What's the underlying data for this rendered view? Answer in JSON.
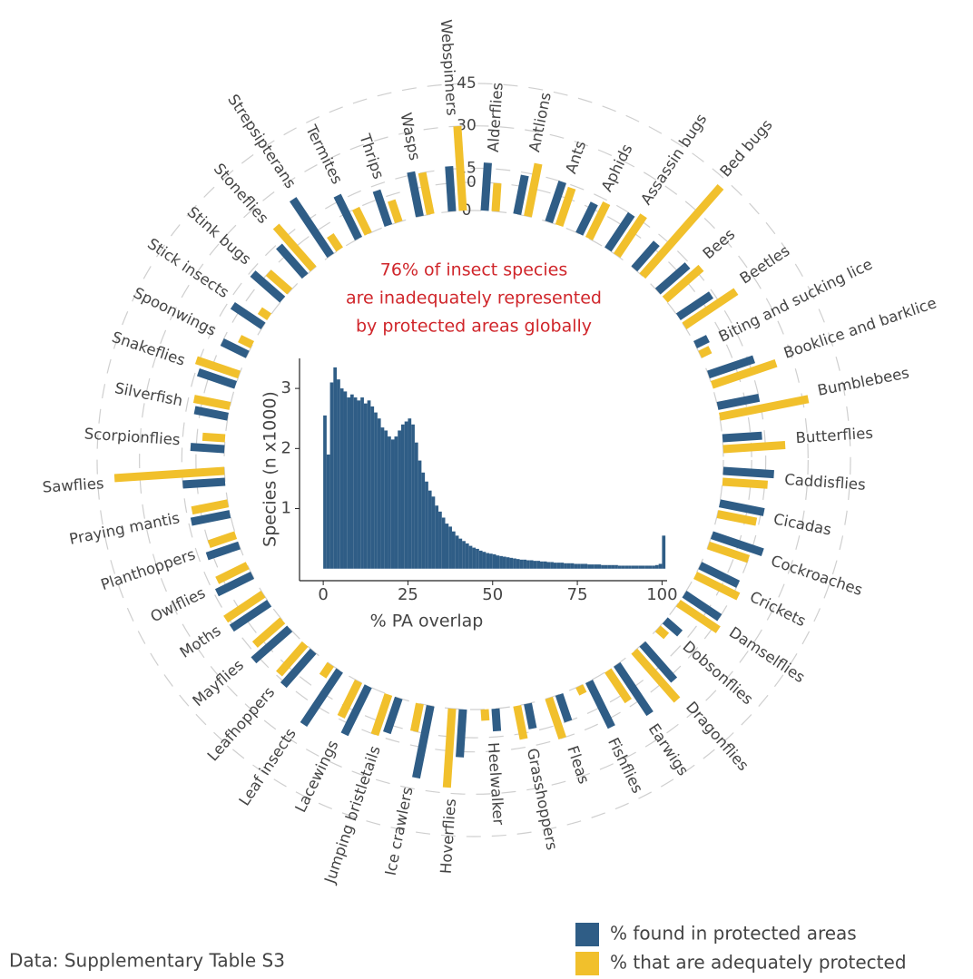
{
  "chart_data": [
    {
      "type": "radialbar",
      "annotation": [
        "76% of insect species",
        "are inadequately represented",
        "by protected areas globally"
      ],
      "source": "Data: Supplementary Table S3",
      "categories": [
        "Alderflies",
        "Antlions",
        "Ants",
        "Aphids",
        "Assassin bugs",
        "Bed bugs",
        "Bees",
        "Beetles",
        "Biting and sucking lice",
        "Booklice and barklice",
        "Bumblebees",
        "Butterflies",
        "Caddisflies",
        "Cicadas",
        "Cockroaches",
        "Crickets",
        "Damselflies",
        "Dobsonflies",
        "Dragonflies",
        "Earwigs",
        "Fishflies",
        "Fleas",
        "Grasshoppers",
        "Heelwalker",
        "Hoverflies",
        "Ice crawlers",
        "Jumping bristletails",
        "Lacewings",
        "Leaf insects",
        "Leafhoppers",
        "Mayflies",
        "Moths",
        "Owlflies",
        "Planthoppers",
        "Praying mantis",
        "Sawflies",
        "Scorpionflies",
        "Silverfish",
        "Snakeflies",
        "Spoonwings",
        "Stick insects",
        "Stink bugs",
        "Stoneflies",
        "Strepsipterans",
        "Termites",
        "Thrips",
        "Wasps",
        "Webspinners"
      ],
      "series": [
        {
          "name": "% found in protected areas",
          "color": "#2f5d86",
          "values": [
            17,
            14,
            15,
            12,
            15,
            12,
            14,
            14,
            5,
            17,
            15,
            14,
            18,
            16,
            19,
            15,
            15,
            7,
            17,
            21,
            18,
            10,
            9,
            8,
            17,
            26,
            13,
            19,
            23,
            16,
            17,
            16,
            14,
            12,
            14,
            15,
            12,
            12,
            14,
            10,
            13,
            14,
            14,
            24,
            17,
            13,
            16,
            16
          ]
        },
        {
          "name": "% that are adequately protected",
          "color": "#f1c02c",
          "values": [
            10,
            19,
            14,
            14,
            17,
            42,
            17,
            22,
            4,
            24,
            32,
            22,
            16,
            14,
            15,
            17,
            17,
            4,
            23,
            13,
            3,
            15,
            12,
            4,
            28,
            10,
            15,
            14,
            5,
            14,
            13,
            16,
            12,
            10,
            13,
            39,
            8,
            13,
            16,
            5,
            4,
            10,
            20,
            6,
            10,
            8,
            15,
            30
          ]
        }
      ],
      "ylim": [
        0,
        45
      ],
      "yticks": [
        0,
        10,
        15,
        30,
        45
      ]
    },
    {
      "type": "histogram",
      "xlabel": "% PA overlap",
      "ylabel": "Species (n x1000)",
      "color": "#2f5d86",
      "bins": [
        0,
        1,
        2,
        3,
        4,
        5,
        6,
        7,
        8,
        9,
        10,
        11,
        12,
        13,
        14,
        15,
        16,
        17,
        18,
        19,
        20,
        21,
        22,
        23,
        24,
        25,
        26,
        27,
        28,
        29,
        30,
        31,
        32,
        33,
        34,
        35,
        36,
        37,
        38,
        39,
        40,
        41,
        42,
        43,
        44,
        45,
        46,
        47,
        48,
        49,
        50,
        51,
        52,
        53,
        54,
        55,
        56,
        57,
        58,
        59,
        60,
        61,
        62,
        63,
        64,
        65,
        66,
        67,
        68,
        69,
        70,
        71,
        72,
        73,
        74,
        75,
        76,
        77,
        78,
        79,
        80,
        81,
        82,
        83,
        84,
        85,
        86,
        87,
        88,
        89,
        90,
        91,
        92,
        93,
        94,
        95,
        96,
        97,
        98,
        99,
        100,
        101
      ],
      "values": [
        2.55,
        1.9,
        3.1,
        3.35,
        3.15,
        3.0,
        2.95,
        2.85,
        2.9,
        2.85,
        2.8,
        2.85,
        2.75,
        2.8,
        2.7,
        2.6,
        2.5,
        2.35,
        2.3,
        2.2,
        2.15,
        2.2,
        2.3,
        2.4,
        2.45,
        2.5,
        2.4,
        2.1,
        1.8,
        1.6,
        1.45,
        1.3,
        1.2,
        1.05,
        0.95,
        0.85,
        0.75,
        0.7,
        0.62,
        0.55,
        0.5,
        0.46,
        0.42,
        0.38,
        0.35,
        0.33,
        0.3,
        0.28,
        0.26,
        0.25,
        0.24,
        0.22,
        0.21,
        0.2,
        0.19,
        0.18,
        0.17,
        0.16,
        0.15,
        0.15,
        0.14,
        0.14,
        0.13,
        0.13,
        0.12,
        0.12,
        0.11,
        0.11,
        0.1,
        0.1,
        0.1,
        0.09,
        0.09,
        0.09,
        0.08,
        0.08,
        0.08,
        0.08,
        0.07,
        0.07,
        0.07,
        0.07,
        0.06,
        0.06,
        0.06,
        0.06,
        0.06,
        0.05,
        0.05,
        0.05,
        0.05,
        0.05,
        0.05,
        0.05,
        0.05,
        0.05,
        0.05,
        0.05,
        0.06,
        0.08,
        0.55
      ],
      "xlim": [
        -7,
        101.5
      ],
      "ylim": [
        -0.2,
        3.5
      ],
      "xticks": [
        0,
        25,
        50,
        75,
        100
      ],
      "yticks": [
        1,
        2,
        3
      ]
    }
  ]
}
